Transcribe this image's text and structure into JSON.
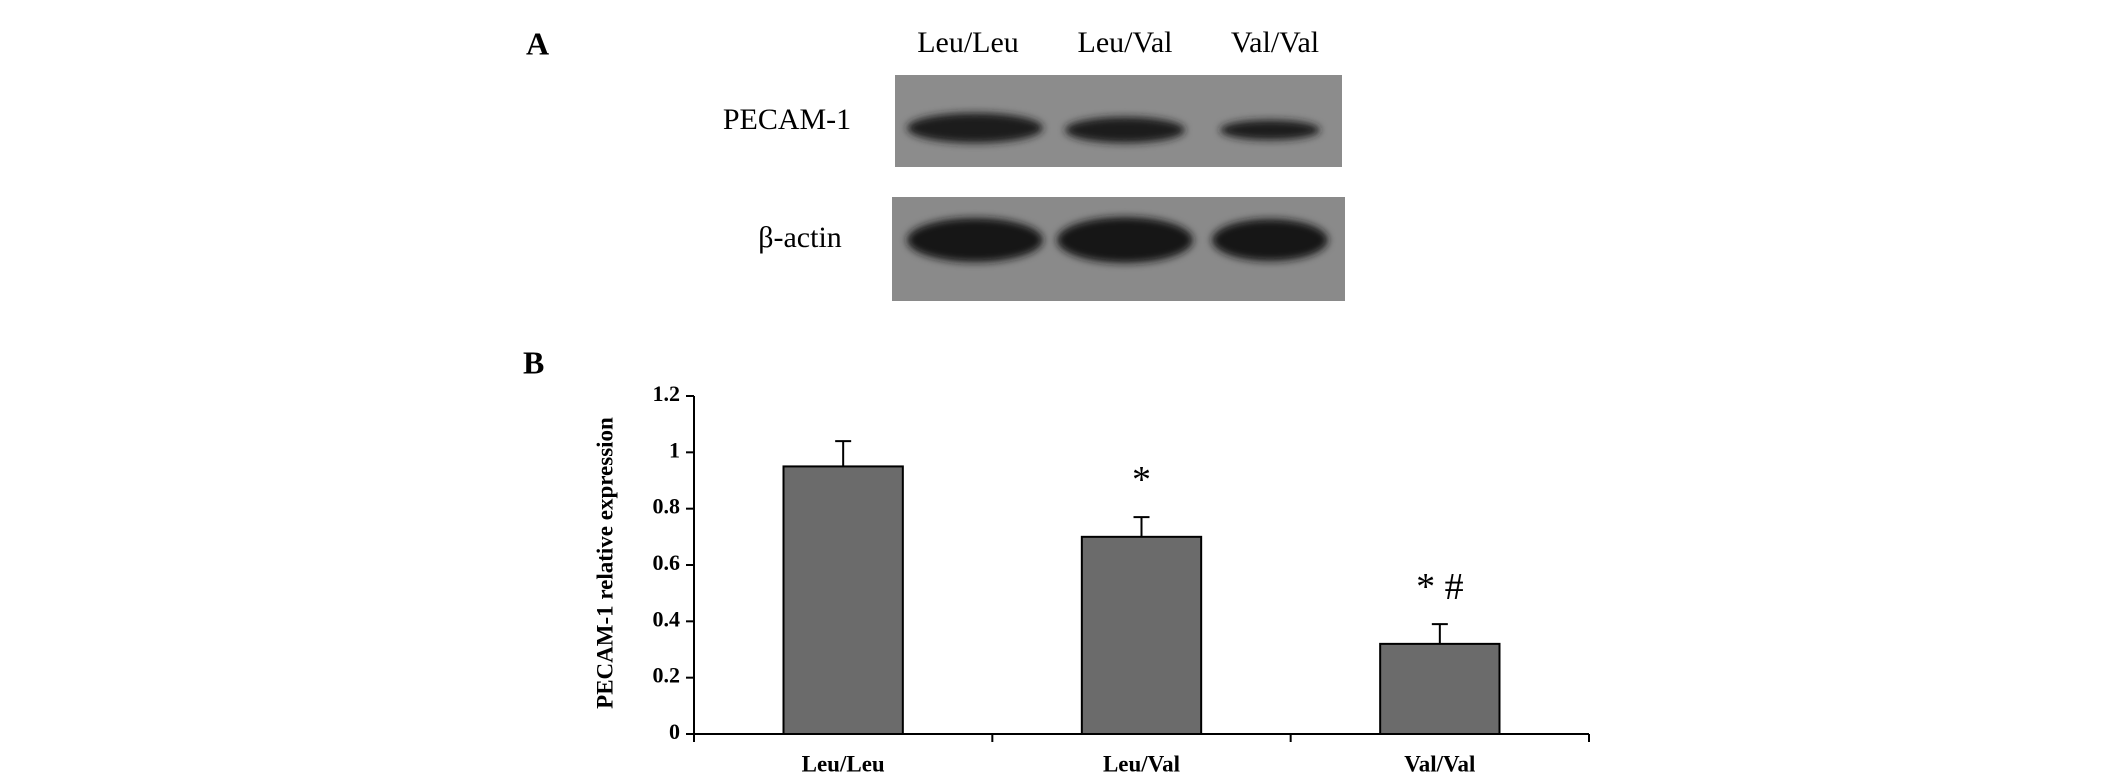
{
  "blot": {
    "panel_label": "A",
    "lanes": [
      "Leu/Leu",
      "Leu/Val",
      "Val/Val"
    ],
    "rows": [
      "PECAM-1",
      "β-actin"
    ]
  },
  "chart_data": {
    "type": "bar",
    "panel_label": "B",
    "y_label": "PECAM-1 relative expression",
    "categories": [
      "Leu/Leu",
      "Leu/Val",
      "Val/Val"
    ],
    "values": [
      0.95,
      0.7,
      0.32
    ],
    "errors": [
      0.09,
      0.07,
      0.07
    ],
    "annotations": [
      null,
      "*",
      "* #"
    ],
    "color": "#6b6b6b",
    "ylim": [
      0,
      1.2
    ],
    "yticks": [
      0,
      0.2,
      0.4,
      0.6,
      0.8,
      1,
      1.2
    ],
    "grid": false
  }
}
